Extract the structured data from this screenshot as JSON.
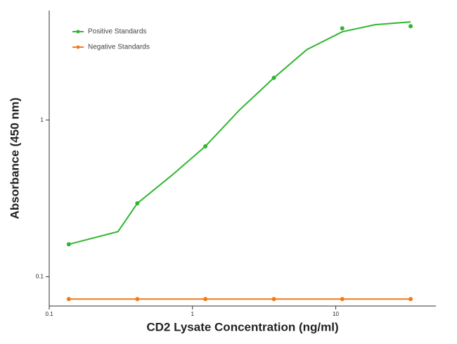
{
  "chart_data": {
    "type": "scatter",
    "x_label": "CD2 Lysate Concentration (ng/ml)",
    "y_label": "Absorbance (450 nm)",
    "log_x": true,
    "log_y": true,
    "xlim": [
      0.1,
      50
    ],
    "ylim": [
      0.065,
      5
    ],
    "xticks": [
      0.1,
      1,
      10
    ],
    "yticks": [
      0.1,
      1
    ],
    "legend": "upper left",
    "series": [
      {
        "name": "Positive Standards",
        "color": "#2fb62f",
        "line": false,
        "x": [
          0.137,
          0.412,
          1.23,
          3.7,
          11.1,
          33.3
        ],
        "values": [
          0.161,
          0.294,
          0.68,
          1.86,
          3.85,
          3.97
        ]
      },
      {
        "name": "Negative Standards",
        "color": "#f07c1c",
        "line": true,
        "x": [
          0.137,
          0.412,
          1.23,
          3.7,
          11.1,
          33.3
        ],
        "values": [
          0.072,
          0.072,
          0.072,
          0.072,
          0.072,
          0.072
        ]
      }
    ],
    "fit_curves": [
      {
        "color": "#2fb62f",
        "x": [
          0.137,
          0.302,
          0.412,
          0.72,
          1.23,
          2.13,
          3.7,
          6.3,
          11.1,
          18.8,
          33.3
        ],
        "values": [
          0.161,
          0.194,
          0.294,
          0.445,
          0.68,
          1.16,
          1.86,
          2.82,
          3.66,
          4.06,
          4.23
        ]
      }
    ]
  }
}
